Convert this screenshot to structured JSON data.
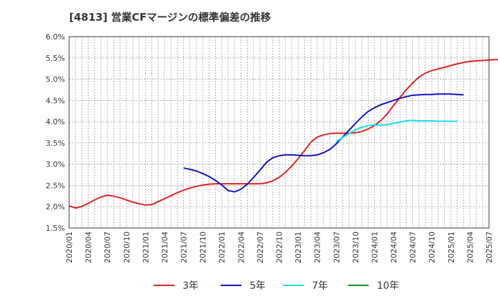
{
  "chart_data": {
    "type": "line",
    "title": "[4813]  営業CFマージンの標準偏差の推移",
    "xlabel": "",
    "ylabel": "",
    "ylim": [
      1.5,
      6.0
    ],
    "yticks": [
      "6.0%",
      "5.5%",
      "5.0%",
      "4.5%",
      "4.0%",
      "3.5%",
      "3.0%",
      "2.5%",
      "2.0%",
      "1.5%"
    ],
    "x_tick_labels": [
      "2020/01",
      "2020/04",
      "2020/07",
      "2020/10",
      "2021/01",
      "2021/04",
      "2021/07",
      "2021/10",
      "2022/01",
      "2022/04",
      "2022/07",
      "2022/10",
      "2023/01",
      "2023/04",
      "2023/07",
      "2023/10",
      "2024/01",
      "2024/04",
      "2024/07",
      "2024/10",
      "2025/01",
      "2025/04",
      "2025/07"
    ],
    "grid": true,
    "legend_position": "bottom",
    "series": [
      {
        "name": "3年",
        "color": "#e02020",
        "start": "2020/01",
        "values": [
          2.02,
          1.97,
          2.01,
          2.08,
          2.16,
          2.23,
          2.27,
          2.25,
          2.21,
          2.16,
          2.11,
          2.07,
          2.04,
          2.05,
          2.12,
          2.19,
          2.26,
          2.33,
          2.39,
          2.44,
          2.48,
          2.51,
          2.53,
          2.54,
          2.54,
          2.54,
          2.54,
          2.54,
          2.54,
          2.54,
          2.54,
          2.56,
          2.61,
          2.69,
          2.81,
          2.96,
          3.13,
          3.32,
          3.52,
          3.64,
          3.69,
          3.72,
          3.73,
          3.73,
          3.73,
          3.74,
          3.77,
          3.83,
          3.91,
          4.03,
          4.18,
          4.38,
          4.57,
          4.75,
          4.91,
          5.05,
          5.14,
          5.2,
          5.24,
          5.28,
          5.32,
          5.36,
          5.39,
          5.42,
          5.43,
          5.44,
          5.45,
          5.46,
          5.46,
          5.46,
          5.46,
          5.45
        ]
      },
      {
        "name": "5年",
        "color": "#1010c0",
        "start": "2021/07",
        "values": [
          2.91,
          2.88,
          2.84,
          2.78,
          2.71,
          2.62,
          2.51,
          2.38,
          2.35,
          2.41,
          2.53,
          2.69,
          2.86,
          3.04,
          3.15,
          3.2,
          3.22,
          3.22,
          3.21,
          3.2,
          3.2,
          3.22,
          3.27,
          3.35,
          3.48,
          3.64,
          3.8,
          3.96,
          4.11,
          4.24,
          4.33,
          4.4,
          4.45,
          4.5,
          4.55,
          4.59,
          4.62,
          4.63,
          4.64,
          4.64,
          4.65,
          4.65,
          4.65,
          4.64,
          4.63
        ]
      },
      {
        "name": "7年",
        "color": "#10e0f0",
        "start": "2023/07",
        "values": [
          3.53,
          3.63,
          3.72,
          3.81,
          3.87,
          3.91,
          3.92,
          3.92,
          3.93,
          3.96,
          3.99,
          4.02,
          4.03,
          4.02,
          4.02,
          4.02,
          4.01,
          4.01,
          4.01,
          4.01
        ]
      },
      {
        "name": "10年",
        "color": "#1a8a1a",
        "start": "",
        "values": []
      }
    ]
  }
}
